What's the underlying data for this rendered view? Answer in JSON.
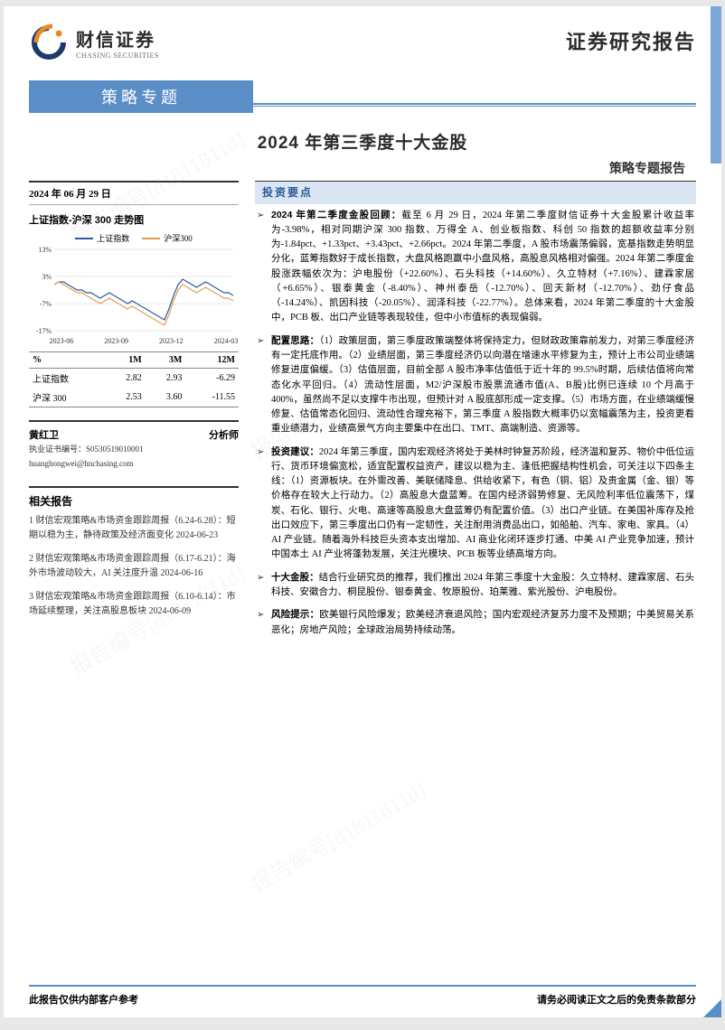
{
  "logo": {
    "cn": "财信证券",
    "en": "CHASING SECURITIES"
  },
  "top_right": "证券研究报告",
  "band_title": "策略专题",
  "main_title": "2024 年第三季度十大金股",
  "subtitle": "策略专题报告",
  "date": "2024 年 06 月 29 日",
  "chart": {
    "title": "上证指数-沪深 300 走势图",
    "legend": [
      {
        "label": "上证指数",
        "color": "#2b5a9c"
      },
      {
        "label": "沪深300",
        "color": "#e0a050"
      }
    ],
    "x_labels": [
      "2023-06",
      "2023-09",
      "2023-12",
      "2024-03"
    ],
    "y_labels": [
      "13%",
      "3%",
      "-7%",
      "-17%"
    ],
    "ylim": [
      -17,
      13
    ],
    "grid_color": "#d0d0d0",
    "background_color": "#ffffff",
    "series": {
      "sz": [
        0,
        1,
        1,
        0,
        -1,
        -2,
        -2,
        -3,
        -3,
        -4,
        -5,
        -4,
        -3,
        -4,
        -5,
        -6,
        -7,
        -6,
        -7,
        -8,
        -9,
        -10,
        -11,
        -12,
        -13,
        -9,
        -4,
        0,
        2,
        1,
        0,
        -1,
        0,
        1,
        0,
        -1,
        -2,
        -3,
        -3,
        -4
      ],
      "hs": [
        0,
        1,
        0,
        -1,
        -2,
        -3,
        -3,
        -4,
        -5,
        -6,
        -7,
        -6,
        -5,
        -6,
        -7,
        -8,
        -9,
        -8,
        -9,
        -10,
        -11,
        -12,
        -13,
        -14,
        -15,
        -11,
        -6,
        -2,
        0,
        -1,
        -2,
        -3,
        -2,
        -1,
        -2,
        -3,
        -4,
        -5,
        -5,
        -6
      ]
    }
  },
  "perf_table": {
    "headers": [
      "%",
      "1M",
      "3M",
      "12M"
    ],
    "rows": [
      [
        "上证指数",
        "2.82",
        "2.93",
        "-6.29"
      ],
      [
        "沪深 300",
        "2.53",
        "3.60",
        "-11.55"
      ]
    ]
  },
  "analyst": {
    "name": "黄红卫",
    "role": "分析师",
    "license": "执业证书编号：S0530519010001",
    "email": "huanghongwei@hnchasing.com"
  },
  "related": {
    "title": "相关报告",
    "items": [
      "1 财信宏观策略&市场资金跟踪周报（6.24-6.28）：短期以稳为主，静待政策及经济面变化 2024-06-23",
      "2 财信宏观策略&市场资金跟踪周报（6.17-6.21）：海外市场波动较大，AI 关注度升温 2024-06-16",
      "3 财信宏观策略&市场资金跟踪周报（6.10-6.14）：市场延续整理，关注高股息板块 2024-06-09"
    ]
  },
  "section_hd": "投资要点",
  "bullets": [
    {
      "lead": "2024 年第二季度金股回顾：",
      "body": "截至 6 月 29 日，2024 年第二季度财信证券十大金股累计收益率为-3.98%，相对同期沪深 300 指数、万得全 A、创业板指数、科创 50 指数的超额收益率分别为-1.84pct、+1.33pct、+3.43pct、+2.66pct。2024 年第二季度，A 股市场震荡偏弱，宽基指数走势明显分化，蓝筹指数好于成长指数，大盘风格跑赢中小盘风格，高股息风格相对偏强。2024 年第二季度金股涨跌幅依次为：沪电股份（+22.60%）、石头科技（+14.60%）、久立特材（+7.16%）、建霖家居（+6.65%）、银泰黄金（-8.40%）、神州泰岳（-12.70%）、回天新材（-12.70%）、劲仔食品（-14.24%）、凯因科技（-20.05%）、润泽科技（-22.77%）。总体来看，2024 年第二季度的十大金股中，PCB 板、出口产业链等表现较佳，但中小市值标的表现偏弱。"
    },
    {
      "lead": "配置思路：",
      "body": "（1）政策层面，第三季度政策端整体将保持定力，但财政政策靠前发力，对第三季度经济有一定托底作用。（2）业绩层面，第三季度经济仍以向潜在增速水平修复为主，预计上市公司业绩端修复进度偏缓。（3）估值层面，目前全部 A 股市净率估值低于近十年的 99.5%时期，后续估值将向常态化水平回归。（4）流动性层面，M2/沪深股市股票流通市值(A、B股)比例已连续 10 个月高于 400%，虽然尚不足以支撑牛市出现，但预计对 A 股底部形成一定支撑。（5）市场方面，在业绩端缓慢修复、估值常态化回归、流动性合理充裕下，第三季度 A 股指数大概率仍以宽幅震荡为主，投资更看重业绩潜力，业绩高景气方向主要集中在出口、TMT、高端制造、资源等。"
    },
    {
      "lead": "投资建议：",
      "body": "2024 年第三季度，国内宏观经济将处于美林时钟复苏阶段，经济温和复苏、物价中低位运行、货币环境偏宽松，适宜配置权益资产，建议以稳为主、逢低把握结构性机会，可关注以下四条主线：（1）资源板块。在外需改善、美联储降息、供给收紧下，有色（铜、铝）及贵金属（金、银）等价格存在较大上行动力。（2）高股息大盘蓝筹。在国内经济弱势修复、无风险利率低位震荡下，煤炭、石化、银行、火电、高速等高股息大盘蓝筹仍有配置价值。（3）出口产业链。在美国补库存及抢出口效应下，第三季度出口仍有一定韧性，关注耐用消费品出口，如船舶、汽车、家电、家具。（4）AI 产业链。随着海外科技巨头资本支出增加、AI 商业化闭环逐步打通、中美 AI 产业竞争加速，预计中国本土 AI 产业将蓬勃发展，关注光模块、PCB 板等业绩高增方向。"
    },
    {
      "lead": "十大金股：",
      "body": "结合行业研究员的推荐，我们推出 2024 年第三季度十大金股：久立特材、建霖家居、石头科技、安徽合力、桐昆股份、银泰黄金、牧原股份、珀莱雅、紫光股份、沪电股份。"
    },
    {
      "lead": "风险提示：",
      "body": "欧美银行风险爆发；欧美经济衰退风险；国内宏观经济复苏力度不及预期；中美贸易关系恶化；房地产风险；全球政治局势持续动荡。"
    }
  ],
  "footer": {
    "left": "此报告仅供内部客户参考",
    "right": "请务必阅读正文之后的免责条款部分"
  },
  "colors": {
    "brand_blue": "#5b8ec6",
    "logo_orange": "#e88a2a",
    "logo_navy": "#1a3a6b"
  }
}
